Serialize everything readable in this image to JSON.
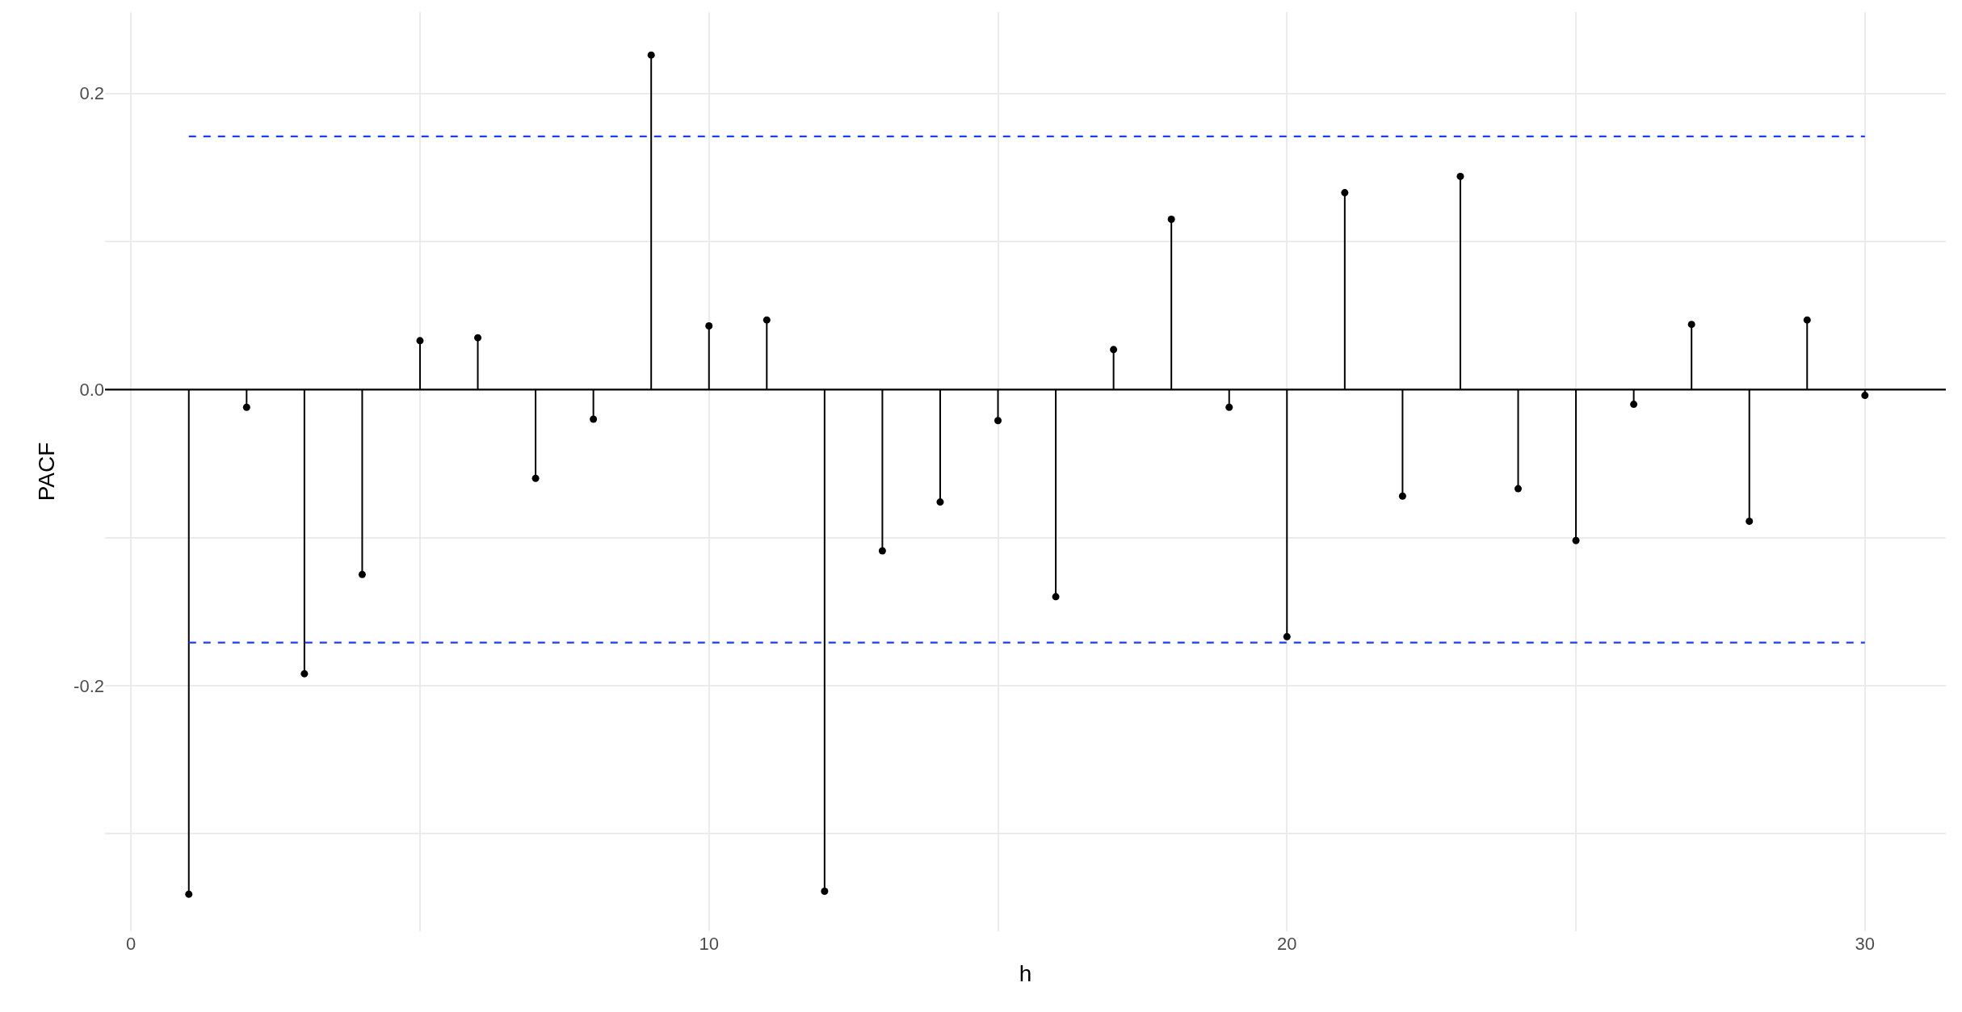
{
  "chart_data": {
    "type": "lollipop",
    "xlabel": "h",
    "ylabel": "PACF",
    "x": [
      1,
      2,
      3,
      4,
      5,
      6,
      7,
      8,
      9,
      10,
      11,
      12,
      13,
      14,
      15,
      16,
      17,
      18,
      19,
      20,
      21,
      22,
      23,
      24,
      25,
      26,
      27,
      28,
      29,
      30
    ],
    "series": [
      {
        "color": "#000000",
        "values": [
          -0.341,
          -0.012,
          -0.192,
          -0.125,
          0.033,
          0.035,
          -0.06,
          -0.02,
          0.226,
          0.043,
          0.047,
          -0.339,
          -0.109,
          -0.076,
          -0.021,
          -0.14,
          0.027,
          0.115,
          -0.012,
          -0.167,
          0.133,
          -0.072,
          0.144,
          -0.067,
          -0.102,
          -0.01,
          0.044,
          -0.089,
          0.047,
          -0.004
        ]
      }
    ],
    "xlim": [
      -0.45,
      31.4
    ],
    "ylim": [
      -0.366,
      0.255
    ],
    "xticks": [
      0,
      {
        "value": 5,
        "label": null
      },
      10,
      {
        "value": 15,
        "label": null
      },
      20,
      {
        "value": 25,
        "label": null
      },
      30
    ],
    "yticks": [
      {
        "value": -0.3,
        "label": null
      },
      -0.2,
      {
        "value": -0.1,
        "label": null
      },
      {
        "value": 0,
        "label": "0.0"
      },
      {
        "value": 0.1,
        "label": null
      },
      0.2
    ],
    "ref_lines": [
      {
        "axis": "y",
        "value": 0,
        "color": "#000000",
        "line_style": "solid"
      },
      {
        "axis": "y",
        "value": 0.171,
        "color": "#1a3cff",
        "line_style": "dashed"
      },
      {
        "axis": "y",
        "value": -0.171,
        "color": "#1a3cff",
        "line_style": "dashed"
      }
    ],
    "grid": true,
    "marker": "circle"
  }
}
